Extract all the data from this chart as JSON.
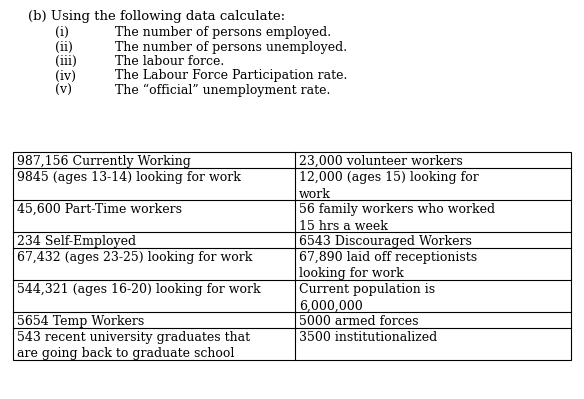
{
  "title_line": "(b) Using the following data calculate:",
  "instructions": [
    [
      "(i)",
      "The number of persons employed."
    ],
    [
      "(ii)",
      "The number of persons unemployed."
    ],
    [
      "(iii)",
      "The labour force."
    ],
    [
      "(iv)",
      "The Labour Force Participation rate."
    ],
    [
      "(v)",
      "The “official” unemployment rate."
    ]
  ],
  "table_left_col": [
    "987,156 Currently Working",
    "9845 (ages 13-14) looking for work",
    "45,600 Part-Time workers",
    "234 Self-Employed",
    "67,432 (ages 23-25) looking for work",
    "544,321 (ages 16-20) looking for work",
    "5654 Temp Workers",
    "543 recent university graduates that\nare going back to graduate school"
  ],
  "table_right_col": [
    "23,000 volunteer workers",
    "12,000 (ages 15) looking for\nwork",
    "56 family workers who worked\n15 hrs a week",
    "6543 Discouraged Workers",
    "67,890 laid off receptionists\nlooking for work",
    "Current population is\n6,000,000",
    "5000 armed forces",
    "3500 institutionalized"
  ],
  "bg_color": "#ffffff",
  "text_color": "#000000",
  "font_size": 9.0,
  "title_font_size": 9.5,
  "instr_font_size": 9.0
}
